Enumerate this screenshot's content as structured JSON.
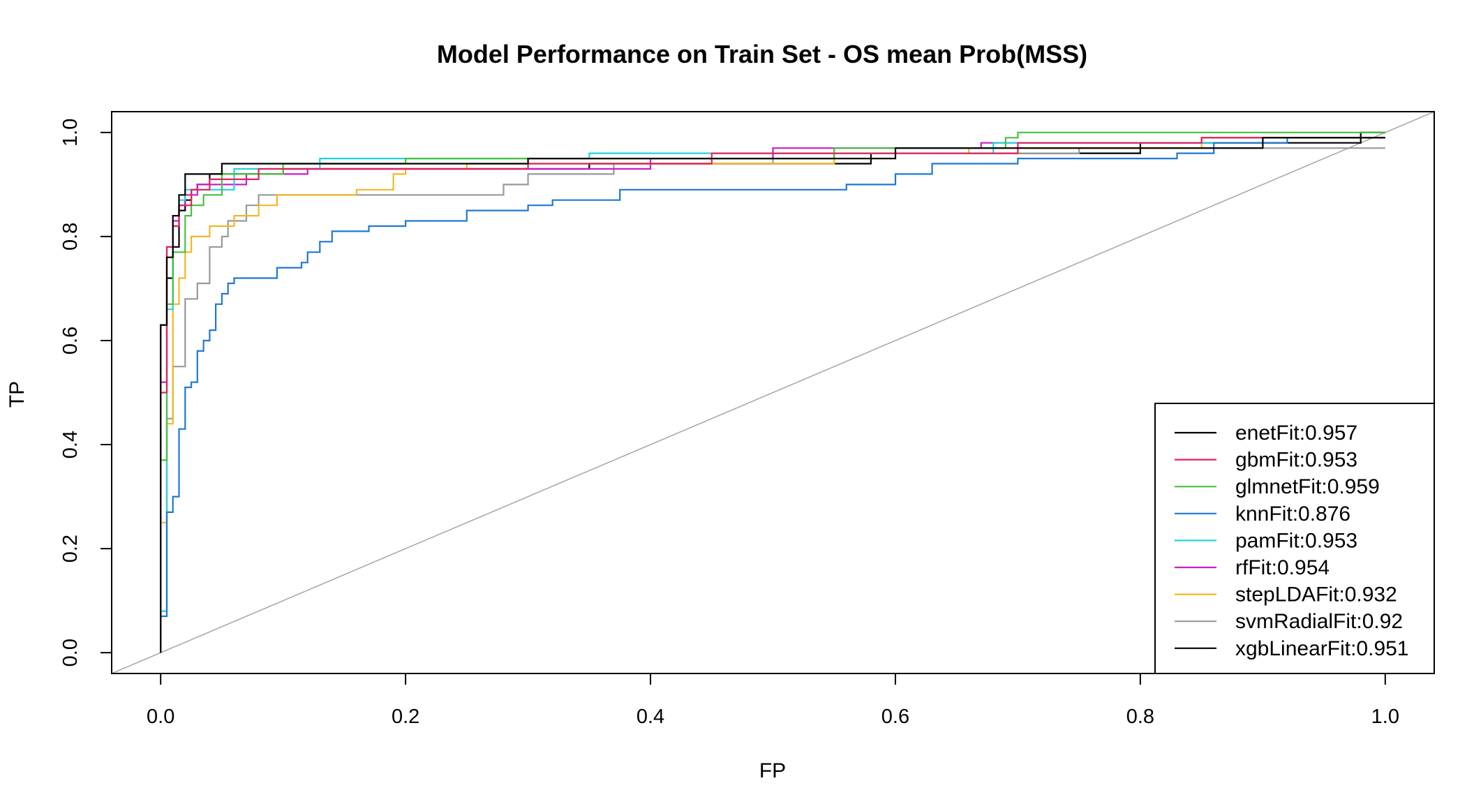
{
  "chart_data": {
    "type": "line",
    "title": "Model Performance on Train Set - OS mean Prob(MSS)",
    "xlabel": "FP",
    "ylabel": "TP",
    "xlim": [
      -0.04,
      1.04
    ],
    "ylim": [
      -0.04,
      1.04
    ],
    "x_ticks": [
      "0.0",
      "0.2",
      "0.4",
      "0.6",
      "0.8",
      "1.0"
    ],
    "y_ticks": [
      "0.0",
      "0.2",
      "0.4",
      "0.6",
      "0.8",
      "1.0"
    ],
    "legend_position": "bottom-right",
    "grid": false,
    "reference_line": {
      "from": [
        0,
        0
      ],
      "to": [
        1,
        1
      ],
      "color": "#aaaaaa"
    },
    "series": [
      {
        "name": "enetFit:0.957",
        "color": "#000000",
        "points": [
          [
            0,
            0
          ],
          [
            0,
            0.63
          ],
          [
            0.005,
            0.63
          ],
          [
            0.005,
            0.76
          ],
          [
            0.01,
            0.76
          ],
          [
            0.01,
            0.84
          ],
          [
            0.015,
            0.84
          ],
          [
            0.015,
            0.88
          ],
          [
            0.02,
            0.88
          ],
          [
            0.02,
            0.92
          ],
          [
            0.05,
            0.92
          ],
          [
            0.05,
            0.94
          ],
          [
            0.1,
            0.94
          ],
          [
            0.3,
            0.94
          ],
          [
            0.3,
            0.95
          ],
          [
            0.6,
            0.95
          ],
          [
            0.6,
            0.97
          ],
          [
            0.9,
            0.97
          ],
          [
            0.9,
            0.99
          ],
          [
            1,
            0.99
          ]
        ]
      },
      {
        "name": "gbmFit:0.953",
        "color": "#e0245e",
        "points": [
          [
            0,
            0
          ],
          [
            0,
            0.5
          ],
          [
            0.005,
            0.5
          ],
          [
            0.005,
            0.78
          ],
          [
            0.01,
            0.78
          ],
          [
            0.01,
            0.82
          ],
          [
            0.015,
            0.82
          ],
          [
            0.015,
            0.86
          ],
          [
            0.025,
            0.86
          ],
          [
            0.025,
            0.89
          ],
          [
            0.04,
            0.89
          ],
          [
            0.04,
            0.91
          ],
          [
            0.08,
            0.91
          ],
          [
            0.08,
            0.93
          ],
          [
            0.3,
            0.93
          ],
          [
            0.3,
            0.94
          ],
          [
            0.45,
            0.94
          ],
          [
            0.45,
            0.96
          ],
          [
            0.7,
            0.96
          ],
          [
            0.7,
            0.98
          ],
          [
            0.85,
            0.98
          ],
          [
            0.85,
            0.99
          ],
          [
            1,
            0.99
          ]
        ]
      },
      {
        "name": "glmnetFit:0.959",
        "color": "#44c140",
        "points": [
          [
            0,
            0
          ],
          [
            0,
            0.37
          ],
          [
            0.005,
            0.37
          ],
          [
            0.005,
            0.67
          ],
          [
            0.01,
            0.67
          ],
          [
            0.01,
            0.77
          ],
          [
            0.02,
            0.77
          ],
          [
            0.02,
            0.84
          ],
          [
            0.025,
            0.84
          ],
          [
            0.025,
            0.86
          ],
          [
            0.035,
            0.86
          ],
          [
            0.035,
            0.88
          ],
          [
            0.05,
            0.88
          ],
          [
            0.05,
            0.92
          ],
          [
            0.1,
            0.92
          ],
          [
            0.1,
            0.94
          ],
          [
            0.2,
            0.94
          ],
          [
            0.2,
            0.95
          ],
          [
            0.55,
            0.95
          ],
          [
            0.55,
            0.97
          ],
          [
            0.69,
            0.97
          ],
          [
            0.69,
            0.99
          ],
          [
            0.7,
            0.99
          ],
          [
            0.7,
            1.0
          ],
          [
            1,
            1.0
          ]
        ]
      },
      {
        "name": "knnFit:0.876",
        "color": "#1f78d1",
        "points": [
          [
            0,
            0
          ],
          [
            0,
            0.07
          ],
          [
            0.005,
            0.07
          ],
          [
            0.005,
            0.27
          ],
          [
            0.01,
            0.27
          ],
          [
            0.01,
            0.3
          ],
          [
            0.015,
            0.3
          ],
          [
            0.015,
            0.43
          ],
          [
            0.02,
            0.43
          ],
          [
            0.02,
            0.51
          ],
          [
            0.025,
            0.51
          ],
          [
            0.025,
            0.52
          ],
          [
            0.03,
            0.52
          ],
          [
            0.03,
            0.58
          ],
          [
            0.035,
            0.58
          ],
          [
            0.035,
            0.6
          ],
          [
            0.04,
            0.6
          ],
          [
            0.04,
            0.62
          ],
          [
            0.045,
            0.62
          ],
          [
            0.045,
            0.67
          ],
          [
            0.05,
            0.67
          ],
          [
            0.05,
            0.69
          ],
          [
            0.055,
            0.69
          ],
          [
            0.055,
            0.71
          ],
          [
            0.06,
            0.71
          ],
          [
            0.06,
            0.72
          ],
          [
            0.095,
            0.72
          ],
          [
            0.095,
            0.74
          ],
          [
            0.115,
            0.74
          ],
          [
            0.115,
            0.75
          ],
          [
            0.12,
            0.75
          ],
          [
            0.12,
            0.77
          ],
          [
            0.13,
            0.77
          ],
          [
            0.13,
            0.79
          ],
          [
            0.14,
            0.79
          ],
          [
            0.14,
            0.81
          ],
          [
            0.17,
            0.81
          ],
          [
            0.17,
            0.82
          ],
          [
            0.2,
            0.82
          ],
          [
            0.2,
            0.83
          ],
          [
            0.25,
            0.83
          ],
          [
            0.25,
            0.85
          ],
          [
            0.3,
            0.85
          ],
          [
            0.3,
            0.86
          ],
          [
            0.32,
            0.86
          ],
          [
            0.32,
            0.87
          ],
          [
            0.375,
            0.87
          ],
          [
            0.375,
            0.89
          ],
          [
            0.56,
            0.89
          ],
          [
            0.56,
            0.9
          ],
          [
            0.6,
            0.9
          ],
          [
            0.6,
            0.92
          ],
          [
            0.63,
            0.92
          ],
          [
            0.63,
            0.94
          ],
          [
            0.7,
            0.94
          ],
          [
            0.7,
            0.95
          ],
          [
            0.83,
            0.95
          ],
          [
            0.83,
            0.96
          ],
          [
            0.86,
            0.96
          ],
          [
            0.86,
            0.98
          ],
          [
            0.92,
            0.98
          ],
          [
            0.92,
            0.99
          ],
          [
            1,
            0.99
          ]
        ]
      },
      {
        "name": "pamFit:0.953",
        "color": "#22d3de",
        "points": [
          [
            0,
            0
          ],
          [
            0,
            0.08
          ],
          [
            0.005,
            0.08
          ],
          [
            0.005,
            0.66
          ],
          [
            0.01,
            0.66
          ],
          [
            0.01,
            0.82
          ],
          [
            0.015,
            0.82
          ],
          [
            0.015,
            0.87
          ],
          [
            0.02,
            0.87
          ],
          [
            0.02,
            0.89
          ],
          [
            0.06,
            0.89
          ],
          [
            0.06,
            0.93
          ],
          [
            0.13,
            0.93
          ],
          [
            0.13,
            0.95
          ],
          [
            0.35,
            0.95
          ],
          [
            0.35,
            0.96
          ],
          [
            0.5,
            0.96
          ],
          [
            0.5,
            0.96
          ],
          [
            0.68,
            0.96
          ],
          [
            0.68,
            0.98
          ],
          [
            0.9,
            0.98
          ],
          [
            0.9,
            0.99
          ],
          [
            1,
            0.99
          ]
        ]
      },
      {
        "name": "rfFit:0.954",
        "color": "#c81ec8",
        "points": [
          [
            0,
            0
          ],
          [
            0,
            0.52
          ],
          [
            0.005,
            0.52
          ],
          [
            0.005,
            0.78
          ],
          [
            0.01,
            0.78
          ],
          [
            0.01,
            0.83
          ],
          [
            0.015,
            0.83
          ],
          [
            0.015,
            0.86
          ],
          [
            0.02,
            0.86
          ],
          [
            0.02,
            0.88
          ],
          [
            0.03,
            0.88
          ],
          [
            0.03,
            0.9
          ],
          [
            0.07,
            0.9
          ],
          [
            0.07,
            0.92
          ],
          [
            0.12,
            0.92
          ],
          [
            0.12,
            0.93
          ],
          [
            0.4,
            0.93
          ],
          [
            0.4,
            0.95
          ],
          [
            0.5,
            0.95
          ],
          [
            0.5,
            0.97
          ],
          [
            0.67,
            0.97
          ],
          [
            0.67,
            0.98
          ],
          [
            0.85,
            0.98
          ],
          [
            0.85,
            0.99
          ],
          [
            1,
            0.99
          ]
        ]
      },
      {
        "name": "stepLDAFit:0.932",
        "color": "#f2b824",
        "points": [
          [
            0,
            0
          ],
          [
            0,
            0.25
          ],
          [
            0.005,
            0.25
          ],
          [
            0.005,
            0.44
          ],
          [
            0.01,
            0.44
          ],
          [
            0.01,
            0.67
          ],
          [
            0.015,
            0.67
          ],
          [
            0.015,
            0.72
          ],
          [
            0.02,
            0.72
          ],
          [
            0.02,
            0.77
          ],
          [
            0.025,
            0.77
          ],
          [
            0.025,
            0.8
          ],
          [
            0.04,
            0.8
          ],
          [
            0.04,
            0.82
          ],
          [
            0.06,
            0.82
          ],
          [
            0.06,
            0.84
          ],
          [
            0.08,
            0.84
          ],
          [
            0.08,
            0.86
          ],
          [
            0.095,
            0.86
          ],
          [
            0.095,
            0.88
          ],
          [
            0.16,
            0.88
          ],
          [
            0.16,
            0.89
          ],
          [
            0.19,
            0.89
          ],
          [
            0.19,
            0.92
          ],
          [
            0.2,
            0.92
          ],
          [
            0.2,
            0.93
          ],
          [
            0.25,
            0.93
          ],
          [
            0.25,
            0.94
          ],
          [
            0.55,
            0.94
          ],
          [
            0.55,
            0.96
          ],
          [
            0.66,
            0.96
          ],
          [
            0.66,
            0.97
          ],
          [
            0.85,
            0.97
          ],
          [
            0.85,
            0.99
          ],
          [
            1,
            0.99
          ]
        ]
      },
      {
        "name": "svmRadialFit:0.92",
        "color": "#999999",
        "points": [
          [
            0,
            0
          ],
          [
            0,
            0.08
          ],
          [
            0.005,
            0.08
          ],
          [
            0.005,
            0.45
          ],
          [
            0.01,
            0.45
          ],
          [
            0.01,
            0.55
          ],
          [
            0.02,
            0.55
          ],
          [
            0.02,
            0.68
          ],
          [
            0.03,
            0.68
          ],
          [
            0.03,
            0.71
          ],
          [
            0.04,
            0.71
          ],
          [
            0.04,
            0.78
          ],
          [
            0.05,
            0.78
          ],
          [
            0.05,
            0.8
          ],
          [
            0.055,
            0.8
          ],
          [
            0.055,
            0.83
          ],
          [
            0.07,
            0.83
          ],
          [
            0.07,
            0.86
          ],
          [
            0.08,
            0.86
          ],
          [
            0.08,
            0.88
          ],
          [
            0.28,
            0.88
          ],
          [
            0.28,
            0.9
          ],
          [
            0.3,
            0.9
          ],
          [
            0.3,
            0.92
          ],
          [
            0.37,
            0.92
          ],
          [
            0.37,
            0.94
          ],
          [
            0.5,
            0.94
          ],
          [
            0.5,
            0.96
          ],
          [
            0.75,
            0.96
          ],
          [
            0.75,
            0.97
          ],
          [
            0.98,
            0.97
          ],
          [
            0.98,
            0.97
          ],
          [
            1,
            0.97
          ]
        ]
      },
      {
        "name": "xgbLinearFit:0.951",
        "color": "#000000",
        "points": [
          [
            0,
            0
          ],
          [
            0,
            0.63
          ],
          [
            0.005,
            0.63
          ],
          [
            0.005,
            0.72
          ],
          [
            0.01,
            0.72
          ],
          [
            0.01,
            0.78
          ],
          [
            0.015,
            0.78
          ],
          [
            0.015,
            0.85
          ],
          [
            0.02,
            0.85
          ],
          [
            0.02,
            0.87
          ],
          [
            0.025,
            0.87
          ],
          [
            0.025,
            0.89
          ],
          [
            0.03,
            0.89
          ],
          [
            0.03,
            0.9
          ],
          [
            0.04,
            0.9
          ],
          [
            0.04,
            0.92
          ],
          [
            0.1,
            0.92
          ],
          [
            0.1,
            0.93
          ],
          [
            0.35,
            0.93
          ],
          [
            0.35,
            0.94
          ],
          [
            0.58,
            0.94
          ],
          [
            0.58,
            0.96
          ],
          [
            0.8,
            0.96
          ],
          [
            0.8,
            0.98
          ],
          [
            0.98,
            0.98
          ],
          [
            0.98,
            1.0
          ],
          [
            1,
            1.0
          ]
        ]
      }
    ]
  }
}
